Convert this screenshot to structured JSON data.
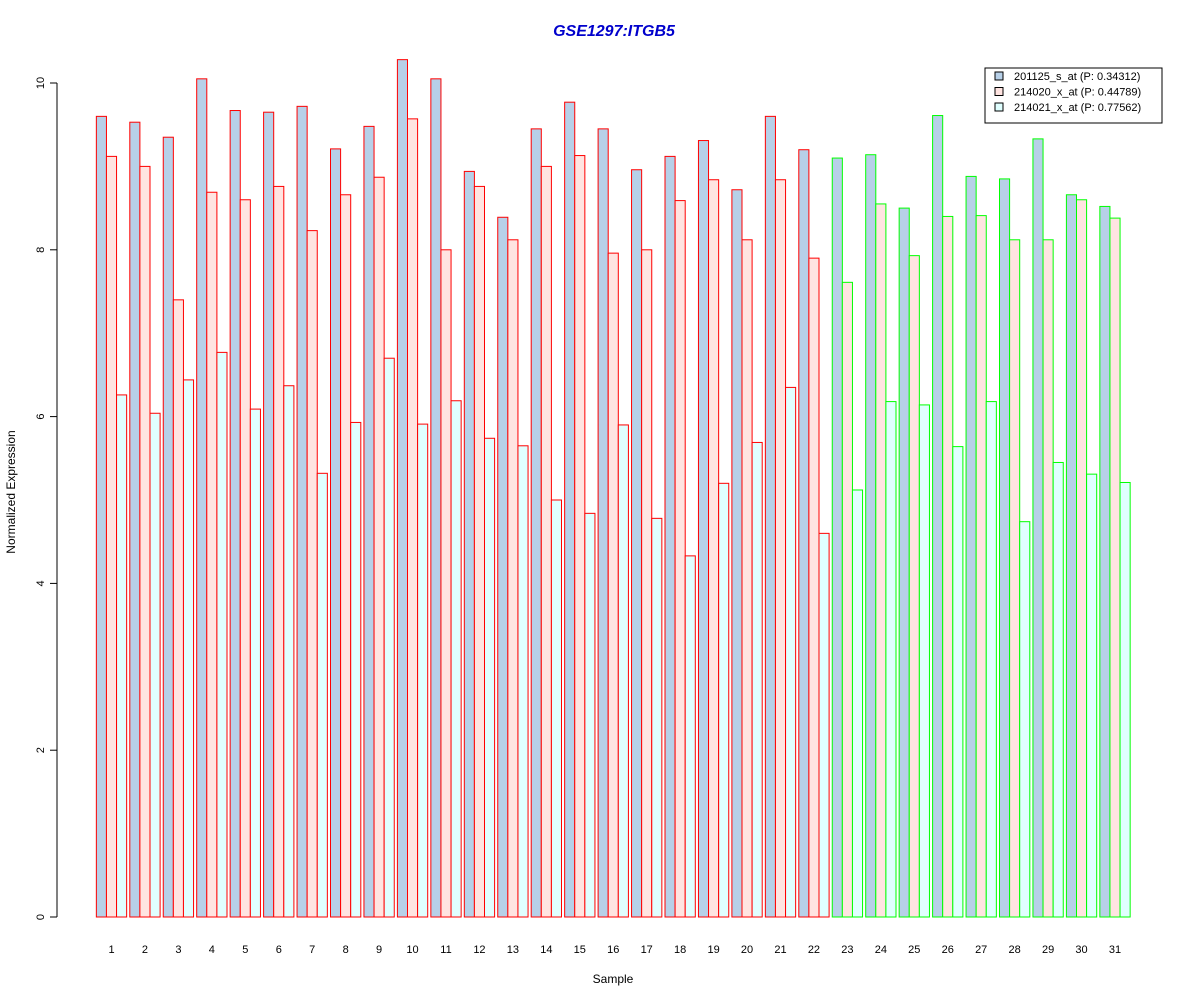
{
  "chart_data": {
    "type": "bar",
    "title": "GSE1297:ITGB5",
    "xlabel": "Sample",
    "ylabel": "Normalized Expression",
    "ylim": [
      0,
      10.4
    ],
    "yticks": [
      "0",
      "2",
      "4",
      "6",
      "8",
      "10"
    ],
    "grid": false,
    "legend_position": "top-right",
    "categories": [
      "1",
      "2",
      "3",
      "4",
      "5",
      "6",
      "7",
      "8",
      "9",
      "10",
      "11",
      "12",
      "13",
      "14",
      "15",
      "16",
      "17",
      "18",
      "19",
      "20",
      "21",
      "22",
      "23",
      "24",
      "25",
      "26",
      "27",
      "28",
      "29",
      "30",
      "31"
    ],
    "groups": [
      {
        "samples": "1-22",
        "border_color": "#ff0000"
      },
      {
        "samples": "23-31",
        "border_color": "#00ff00"
      }
    ],
    "series": [
      {
        "name": "201125_s_at (P: 0.34312)",
        "color": "#b7d0e8",
        "values": [
          9.6,
          9.53,
          9.35,
          10.05,
          9.67,
          9.65,
          9.72,
          9.21,
          9.48,
          10.28,
          10.05,
          8.94,
          8.39,
          9.45,
          9.77,
          9.45,
          8.96,
          9.12,
          9.31,
          8.72,
          9.6,
          9.2,
          9.1,
          9.14,
          8.5,
          9.61,
          8.88,
          8.85,
          9.33,
          8.66,
          8.52
        ]
      },
      {
        "name": "214020_x_at (P: 0.44789)",
        "color": "#ffe4e1",
        "values": [
          9.12,
          9.0,
          7.4,
          8.69,
          8.6,
          8.76,
          8.23,
          8.66,
          8.87,
          9.57,
          8.0,
          8.76,
          8.12,
          9.0,
          9.13,
          7.96,
          8.0,
          8.59,
          8.84,
          8.12,
          8.84,
          7.9,
          7.61,
          8.55,
          7.93,
          8.4,
          8.41,
          8.12,
          8.12,
          8.6,
          8.38
        ]
      },
      {
        "name": "214021_x_at (P: 0.77562)",
        "color": "#e0ffff",
        "values": [
          6.26,
          6.04,
          6.44,
          6.77,
          6.09,
          6.37,
          5.32,
          5.93,
          6.7,
          5.91,
          6.19,
          5.74,
          5.65,
          5.0,
          4.84,
          5.9,
          4.78,
          4.33,
          5.2,
          5.69,
          6.35,
          4.6,
          5.12,
          6.18,
          6.14,
          5.64,
          6.18,
          4.74,
          5.45,
          5.31,
          5.21
        ]
      }
    ]
  }
}
